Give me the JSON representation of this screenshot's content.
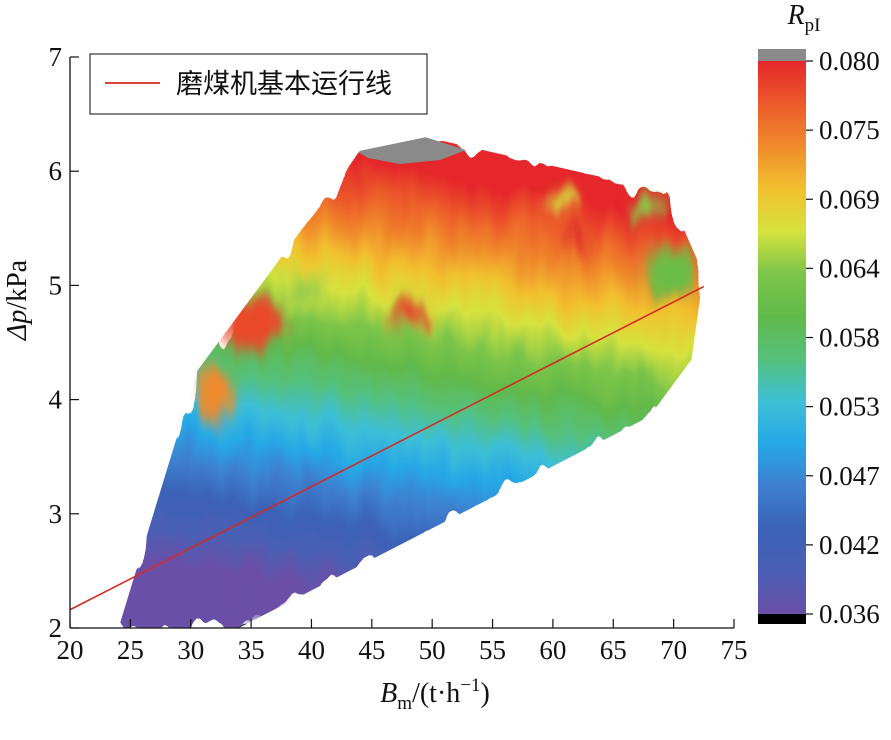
{
  "chart_data": {
    "type": "heatmap",
    "title": "",
    "xlabel": {
      "main": "B",
      "sub": "m",
      "rest": "/(t·h",
      "sup": "−1",
      "close": ")"
    },
    "ylabel": {
      "main": "Δp",
      "rest": "/kPa"
    },
    "xlim": [
      20,
      75
    ],
    "ylim": [
      2,
      7
    ],
    "x_ticks": [
      20,
      25,
      30,
      35,
      40,
      45,
      50,
      55,
      60,
      65,
      70,
      75
    ],
    "y_ticks": [
      2,
      3,
      4,
      5,
      6,
      7
    ],
    "colorbar": {
      "title_main": "R",
      "title_sub": "pI",
      "range": [
        0.036,
        0.08
      ],
      "ticks": [
        "0.080",
        "0.075",
        "0.069",
        "0.064",
        "0.058",
        "0.053",
        "0.047",
        "0.042",
        "0.036"
      ],
      "colors": [
        "#6a4fa8",
        "#4a5fb4",
        "#3a62b6",
        "#3f7fcf",
        "#25a8e6",
        "#3ec0d6",
        "#55c07a",
        "#62b94a",
        "#7cc54a",
        "#d6e23e",
        "#f2c12e",
        "#f08a2c",
        "#ec5a2a",
        "#e5262a"
      ],
      "over_color": "#8a8a8a",
      "under_color": "#000000"
    },
    "domain_outline": [
      [
        24,
        2
      ],
      [
        30.5,
        4.25
      ],
      [
        44,
        6.18
      ],
      [
        49.5,
        6.3
      ],
      [
        69.5,
        5.82
      ],
      [
        72.5,
        5.1
      ],
      [
        71.5,
        4.35
      ],
      [
        68,
        3.85
      ],
      [
        34,
        2
      ]
    ],
    "series": [
      {
        "name": "磨煤机基本运行线",
        "color": "#d42a22",
        "x": [
          20,
          72.5
        ],
        "y": [
          2.16,
          4.99
        ]
      }
    ],
    "legend_position": "top-left"
  }
}
